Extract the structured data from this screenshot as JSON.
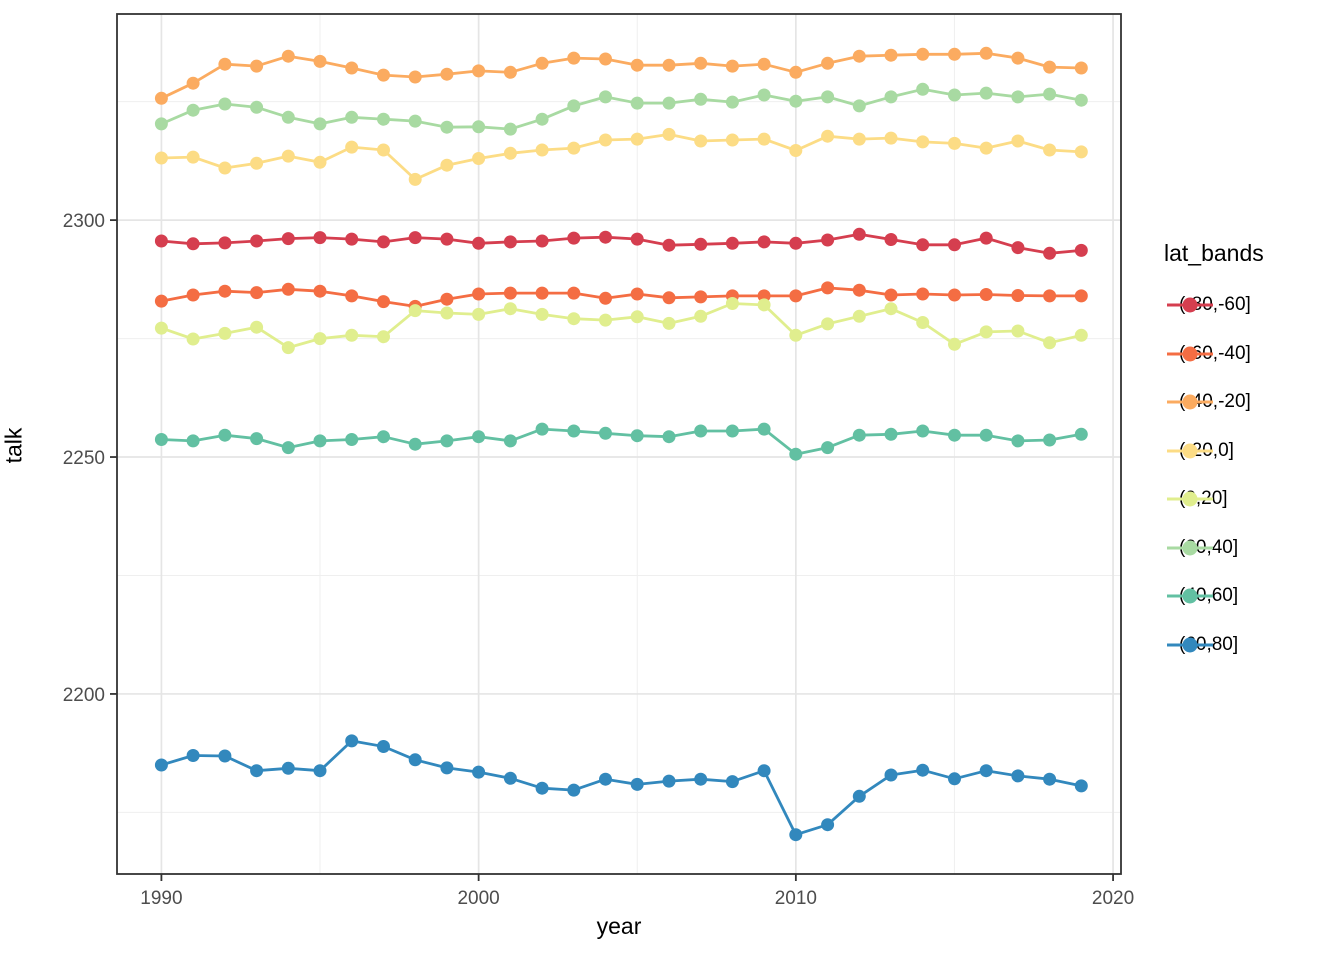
{
  "chart_data": {
    "type": "line",
    "title": "",
    "xlabel": "year",
    "ylabel": "talk",
    "legend_title": "lat_bands",
    "legend_position": "right",
    "grid": "on",
    "x": [
      1990,
      1991,
      1992,
      1993,
      1994,
      1995,
      1996,
      1997,
      1998,
      1999,
      2000,
      2001,
      2002,
      2003,
      2004,
      2005,
      2006,
      2007,
      2008,
      2009,
      2010,
      2011,
      2012,
      2013,
      2014,
      2015,
      2016,
      2017,
      2018,
      2019
    ],
    "x_major_ticks": [
      1990,
      2000,
      2010,
      2020
    ],
    "x_minor_ticks": [
      1995,
      2005,
      2015
    ],
    "y_major_ticks": [
      2200,
      2250,
      2300
    ],
    "y_minor_ticks": [
      2175,
      2225,
      2275,
      2325
    ],
    "xlim": [
      1988.6,
      2020.25
    ],
    "ylim": [
      2162.0,
      2343.5
    ],
    "series": [
      {
        "name": "(-80,-60]",
        "color": "#d53e4f",
        "values": [
          2295.6,
          2295.0,
          2295.2,
          2295.6,
          2296.1,
          2296.3,
          2296.0,
          2295.4,
          2296.3,
          2296.0,
          2295.1,
          2295.4,
          2295.6,
          2296.2,
          2296.4,
          2296.0,
          2294.7,
          2294.9,
          2295.1,
          2295.4,
          2295.1,
          2295.8,
          2297.0,
          2295.9,
          2294.8,
          2294.8,
          2296.2,
          2294.2,
          2293.0,
          2293.6
        ]
      },
      {
        "name": "(-60,-40]",
        "color": "#f46d43",
        "values": [
          2282.9,
          2284.2,
          2285.0,
          2284.7,
          2285.4,
          2285.0,
          2284.0,
          2282.8,
          2281.8,
          2283.3,
          2284.4,
          2284.6,
          2284.6,
          2284.6,
          2283.5,
          2284.4,
          2283.6,
          2283.8,
          2284.0,
          2284.0,
          2284.0,
          2285.7,
          2285.2,
          2284.2,
          2284.4,
          2284.2,
          2284.3,
          2284.1,
          2284.0,
          2284.0
        ]
      },
      {
        "name": "(-40,-20]",
        "color": "#fbab60",
        "values": [
          2325.7,
          2328.9,
          2332.9,
          2332.5,
          2334.6,
          2333.5,
          2332.1,
          2330.6,
          2330.2,
          2330.8,
          2331.5,
          2331.2,
          2333.1,
          2334.2,
          2334.0,
          2332.7,
          2332.7,
          2333.1,
          2332.5,
          2332.9,
          2331.2,
          2333.1,
          2334.6,
          2334.8,
          2335.0,
          2335.0,
          2335.2,
          2334.2,
          2332.3,
          2332.1
        ]
      },
      {
        "name": "(-20,0]",
        "color": "#fcdc85",
        "values": [
          2313.1,
          2313.3,
          2311.0,
          2312.0,
          2313.5,
          2312.2,
          2315.4,
          2314.8,
          2308.6,
          2311.6,
          2313.0,
          2314.1,
          2314.8,
          2315.2,
          2316.9,
          2317.1,
          2318.1,
          2316.7,
          2316.9,
          2317.1,
          2314.7,
          2317.7,
          2317.1,
          2317.3,
          2316.5,
          2316.2,
          2315.2,
          2316.7,
          2314.8,
          2314.4
        ]
      },
      {
        "name": "(0,20]",
        "color": "#e0ee8e",
        "values": [
          2277.2,
          2274.9,
          2276.1,
          2277.4,
          2273.1,
          2275.0,
          2275.7,
          2275.4,
          2280.9,
          2280.4,
          2280.1,
          2281.3,
          2280.1,
          2279.2,
          2278.9,
          2279.6,
          2278.2,
          2279.7,
          2282.4,
          2282.1,
          2275.7,
          2278.1,
          2279.7,
          2281.3,
          2278.4,
          2273.8,
          2276.4,
          2276.6,
          2274.1,
          2275.7
        ]
      },
      {
        "name": "(20,40]",
        "color": "#a8daa2",
        "values": [
          2320.3,
          2323.2,
          2324.5,
          2323.8,
          2321.7,
          2320.3,
          2321.7,
          2321.3,
          2320.9,
          2319.6,
          2319.7,
          2319.2,
          2321.3,
          2324.1,
          2326.0,
          2324.7,
          2324.7,
          2325.5,
          2324.9,
          2326.4,
          2325.1,
          2326.0,
          2324.1,
          2326.0,
          2327.6,
          2326.4,
          2326.8,
          2326.0,
          2326.6,
          2325.3
        ]
      },
      {
        "name": "(40,60]",
        "color": "#62c0a2",
        "values": [
          2253.7,
          2253.4,
          2254.6,
          2253.9,
          2252.0,
          2253.4,
          2253.7,
          2254.3,
          2252.7,
          2253.4,
          2254.3,
          2253.4,
          2255.9,
          2255.5,
          2255.0,
          2254.5,
          2254.3,
          2255.5,
          2255.5,
          2255.9,
          2250.6,
          2252.0,
          2254.6,
          2254.8,
          2255.5,
          2254.6,
          2254.6,
          2253.4,
          2253.6,
          2254.8
        ]
      },
      {
        "name": "(60,80]",
        "color": "#3288bd",
        "values": [
          2185.0,
          2187.0,
          2186.9,
          2183.8,
          2184.3,
          2183.8,
          2190.1,
          2188.9,
          2186.1,
          2184.4,
          2183.5,
          2182.2,
          2180.1,
          2179.7,
          2182.0,
          2180.9,
          2181.6,
          2182.0,
          2181.5,
          2183.8,
          2170.3,
          2172.4,
          2178.4,
          2182.9,
          2183.9,
          2182.1,
          2183.8,
          2182.7,
          2182.0,
          2180.6
        ]
      }
    ],
    "style": {
      "panel_border_color": "#333333",
      "grid_major_color": "#e5e5e5",
      "grid_minor_color": "#efefef",
      "tick_color": "#333333",
      "tick_label_color": "#4d4d4d",
      "point_radius": 6.5,
      "line_width": 2.8
    }
  }
}
